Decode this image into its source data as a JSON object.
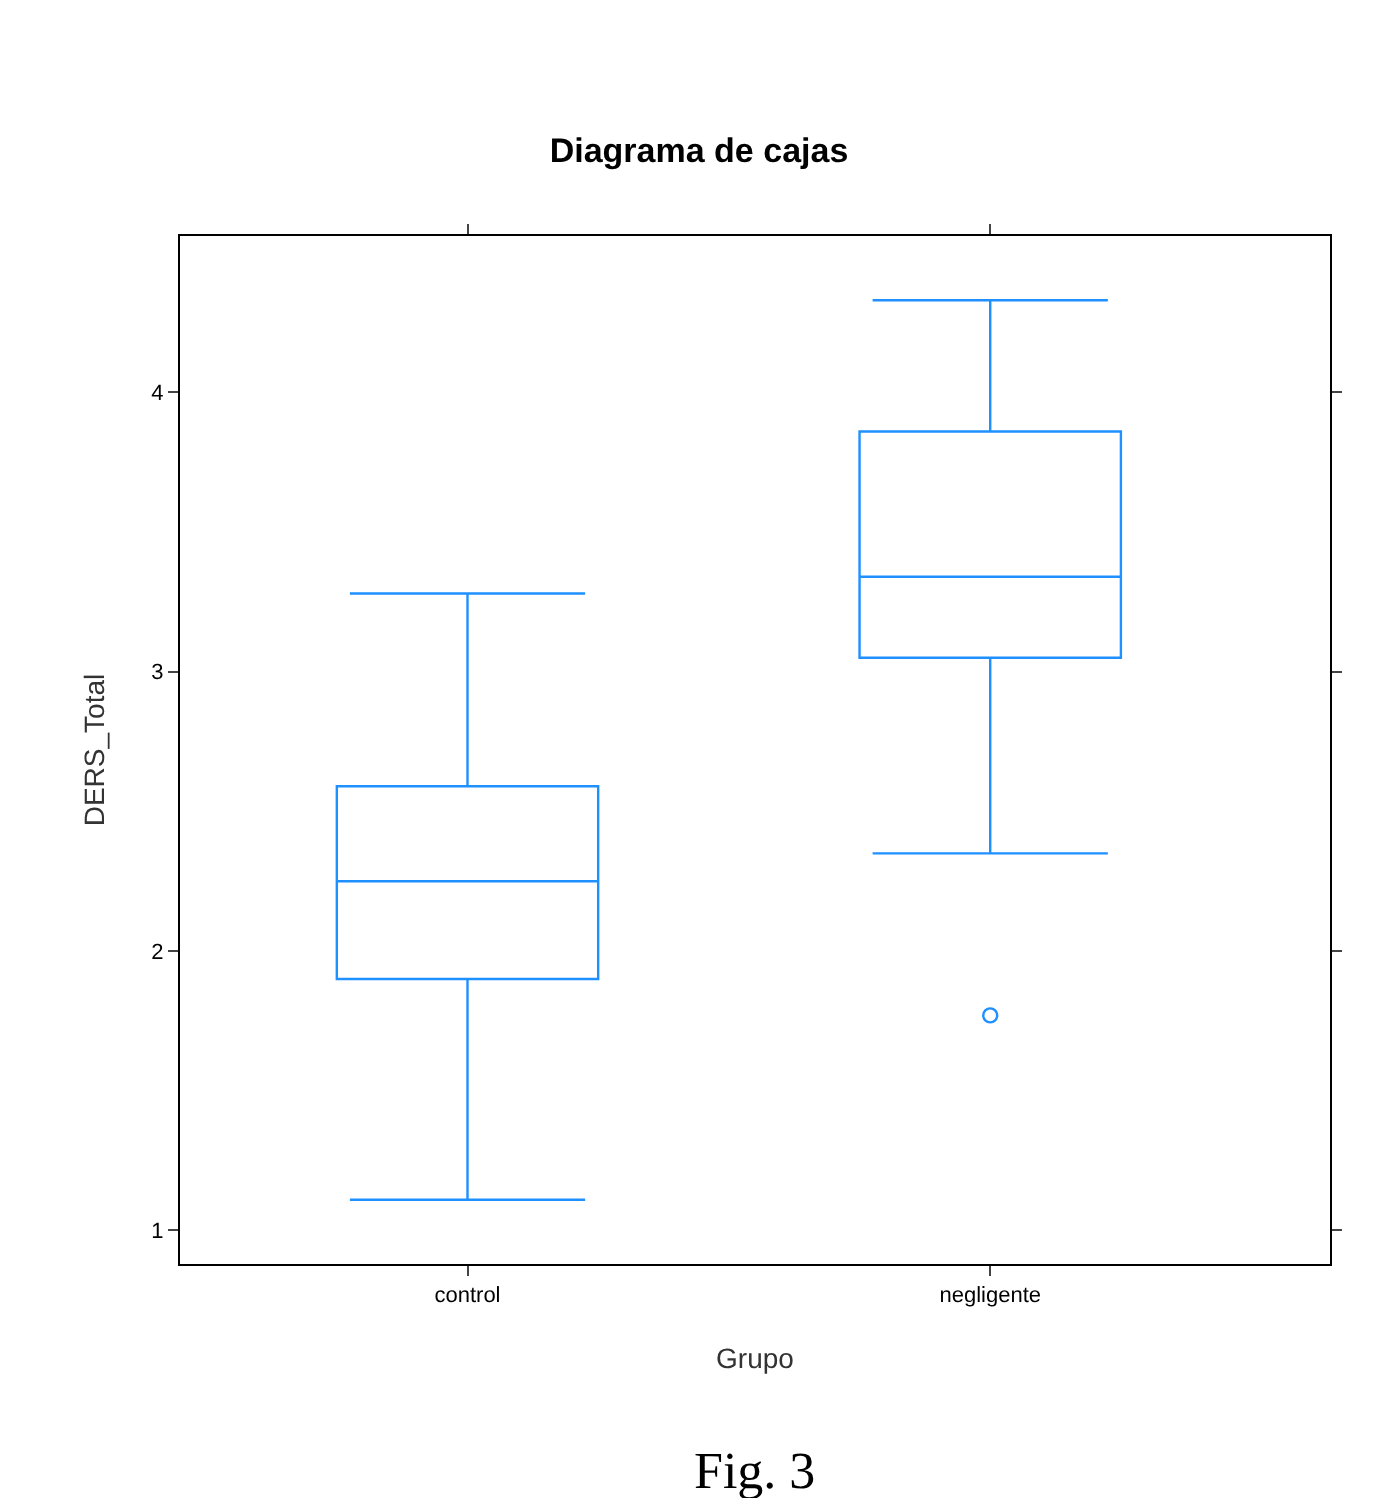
{
  "chart_data": {
    "type": "box",
    "title": "Diagrama de cajas",
    "xlabel": "Grupo",
    "ylabel": "DERS_Total",
    "categories": [
      "control",
      "negligente"
    ],
    "series": [
      {
        "color": "#1e90ff",
        "boxes": [
          {
            "low": 1.11,
            "q1": 1.9,
            "median": 2.25,
            "q3": 2.59,
            "high": 3.28
          },
          {
            "low": 2.35,
            "q1": 3.05,
            "median": 3.34,
            "q3": 3.86,
            "high": 4.33,
            "outliers": [
              1.77
            ]
          }
        ]
      }
    ],
    "ylim": [
      0.88,
      4.56
    ],
    "yticks": [
      1,
      2,
      3,
      4
    ],
    "grid": false,
    "annotations": [
      "Fig. 3"
    ]
  }
}
